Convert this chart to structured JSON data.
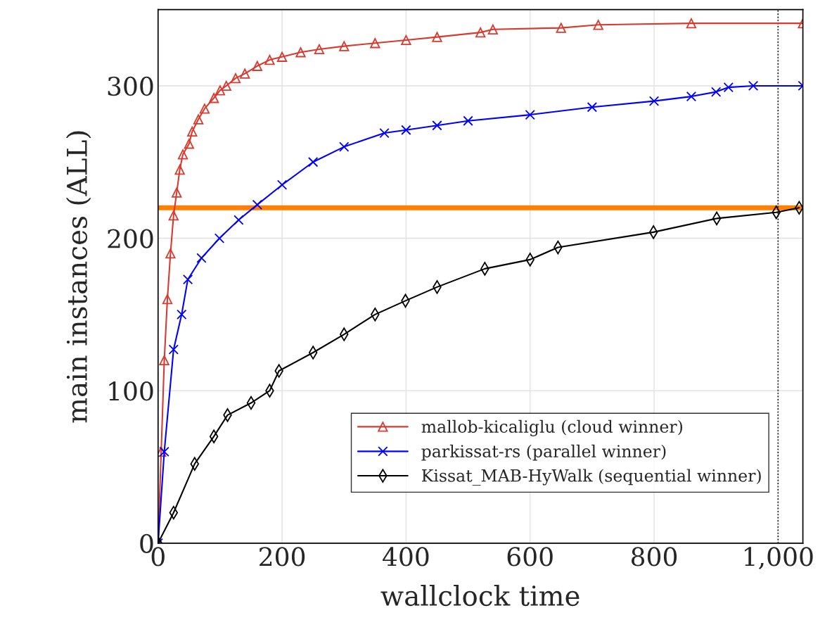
{
  "chart_data": {
    "type": "line",
    "xlabel": "wallclock time",
    "ylabel": "main instances (ALL)",
    "xlim": [
      0,
      1040
    ],
    "ylim": [
      0,
      350
    ],
    "xticks": [
      0,
      200,
      400,
      600,
      800,
      {
        "value": 1000,
        "label": "1,000"
      }
    ],
    "yticks": [
      0,
      100,
      200,
      300
    ],
    "grid": true,
    "legend": "lower right",
    "series": [
      {
        "name": "mallob-kicaliglu (cloud winner)",
        "color": "#d73a2e",
        "marker": "triangle",
        "x": [
          0,
          5,
          10,
          15,
          20,
          25,
          30,
          35,
          40,
          50,
          55,
          65,
          75,
          90,
          100,
          110,
          125,
          140,
          160,
          180,
          200,
          230,
          260,
          300,
          350,
          400,
          450,
          520,
          540,
          650,
          710,
          860,
          1040
        ],
        "values": [
          0,
          60,
          120,
          160,
          190,
          215,
          230,
          245,
          255,
          262,
          270,
          278,
          285,
          292,
          297,
          300,
          305,
          308,
          313,
          317,
          319,
          322,
          324,
          326,
          328,
          330,
          332,
          335,
          337,
          338,
          340,
          341,
          341
        ]
      },
      {
        "name": "parkissat-rs (parallel winner)",
        "color": "#0000ff",
        "marker": "cross",
        "x": [
          0,
          10,
          25,
          38,
          48,
          70,
          99,
          130,
          160,
          200,
          250,
          300,
          365,
          400,
          450,
          500,
          600,
          700,
          800,
          860,
          900,
          920,
          960,
          1040
        ],
        "values": [
          0,
          60,
          127,
          150,
          173,
          187,
          200,
          212,
          222,
          235,
          250,
          260,
          269,
          271,
          274,
          277,
          281,
          286,
          290,
          293,
          296,
          299,
          300,
          300
        ]
      },
      {
        "name": "Kissat_MAB-HyWalk (sequential winner)",
        "color": "#000000",
        "marker": "diamond",
        "x": [
          0,
          25,
          59,
          90,
          112,
          150,
          180,
          195,
          250,
          300,
          350,
          399,
          450,
          527,
          600,
          645,
          799,
          901,
          997,
          1034
        ],
        "values": [
          0,
          20,
          52,
          70,
          84,
          92,
          100,
          113,
          125,
          137,
          150,
          159,
          168,
          180,
          186,
          194,
          204,
          213,
          217,
          220
        ]
      }
    ],
    "ref_lines": [
      {
        "axis": "y",
        "value": 220,
        "color": "#ff8000",
        "line_style": "solid"
      },
      {
        "axis": "x",
        "value": 1000,
        "color": "#000000",
        "line_style": "dotted"
      }
    ]
  }
}
